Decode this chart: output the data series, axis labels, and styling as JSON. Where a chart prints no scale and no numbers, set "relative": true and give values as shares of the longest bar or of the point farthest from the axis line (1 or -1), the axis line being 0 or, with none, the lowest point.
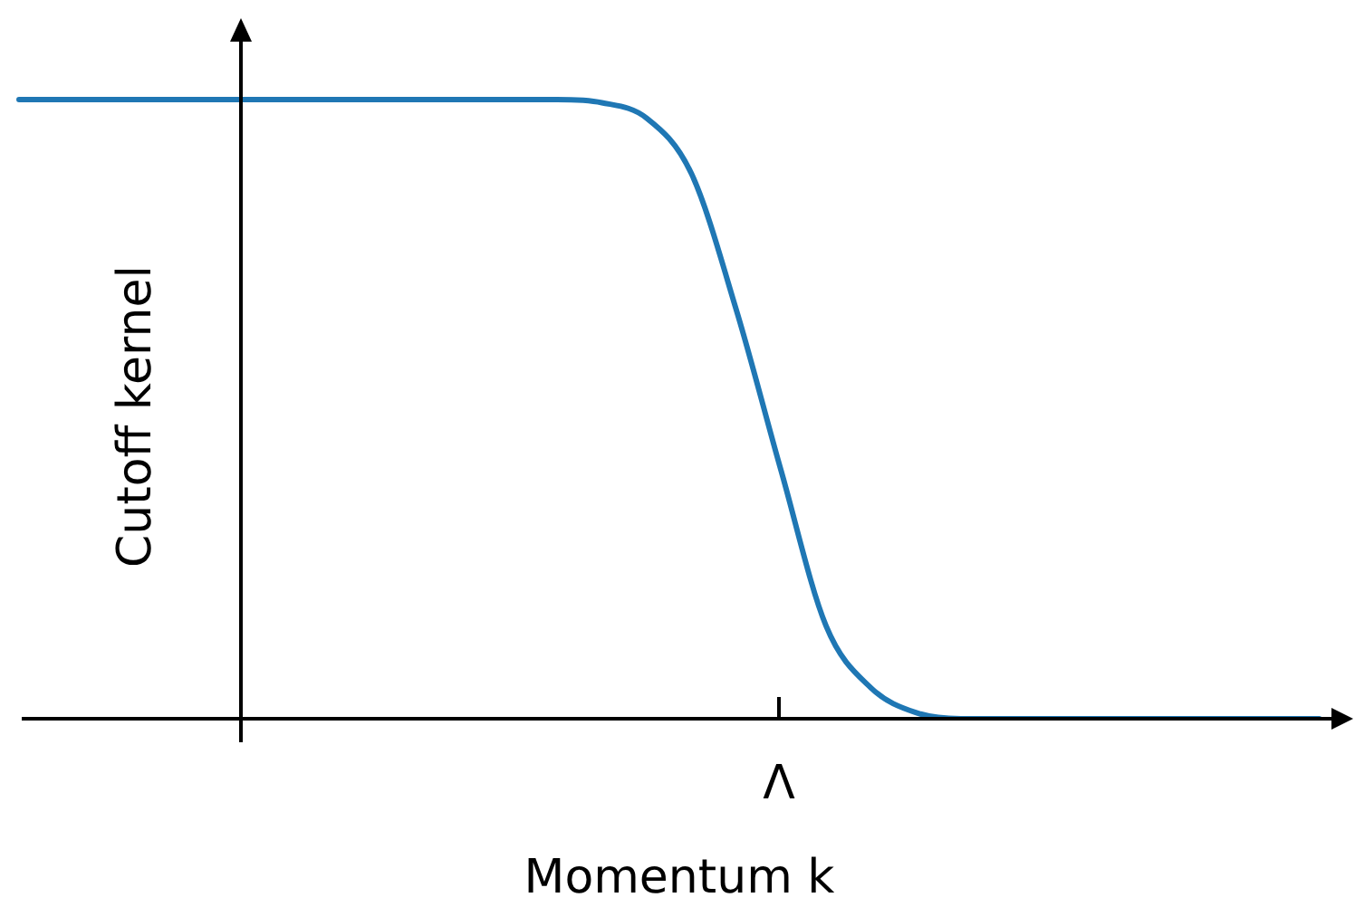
{
  "chart_data": {
    "type": "line",
    "relative": true,
    "xlabel": "Momentum k",
    "ylabel": "Cutoff kernel",
    "annotations": [
      "Λ"
    ],
    "categories": [
      null,
      null,
      null,
      null,
      null,
      null,
      null,
      null,
      null,
      null,
      null,
      null,
      null,
      null,
      null,
      null,
      null,
      null,
      null,
      null,
      null,
      null,
      null,
      null,
      null,
      null,
      null,
      null,
      null,
      null
    ],
    "series": [
      {
        "color": "#1f77b4",
        "values": [
          1,
          1,
          1,
          1,
          1,
          1,
          1,
          1,
          1,
          1,
          1,
          1,
          1,
          0.995,
          0.97,
          0.88,
          0.66,
          0.4,
          0.15,
          0.05,
          0.01,
          0,
          0,
          0,
          0,
          0,
          0,
          0,
          0,
          0
        ]
      }
    ],
    "marker": "none",
    "grid": false,
    "legend": false
  }
}
